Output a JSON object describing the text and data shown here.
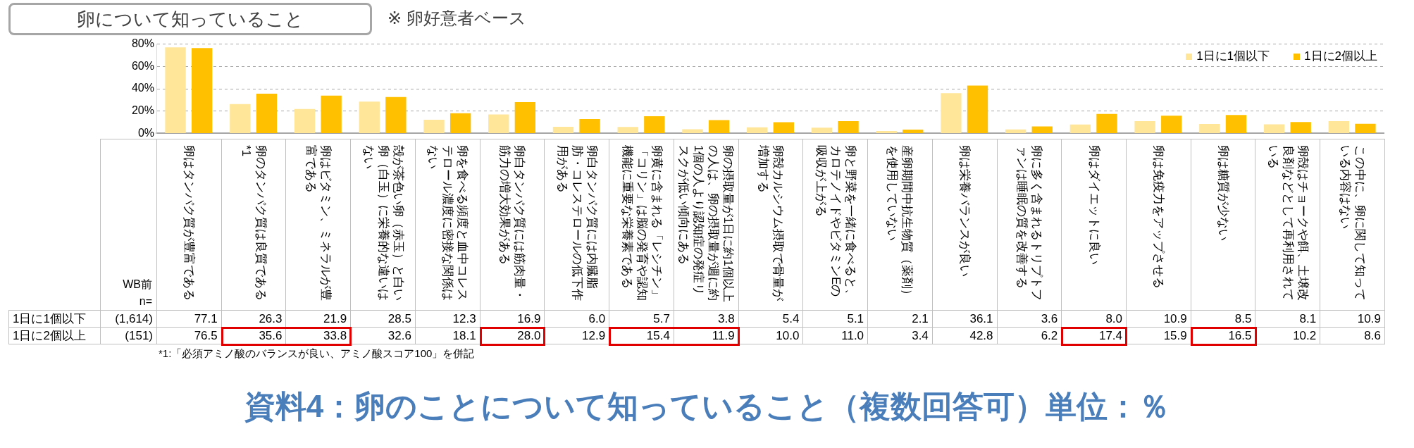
{
  "chart_data": {
    "type": "bar",
    "title": "卵について知っていること",
    "subtitle": "※ 卵好意者ベース",
    "categories": [
      "卵はタンパク質が豊富である",
      "卵のタンパク質は良質である*1",
      "卵はビタミン、ミネラルが豊富である",
      "殻が茶色い卵（赤玉）と白い卵（白玉）に栄養的な違いはない",
      "卵を食べる頻度と血中コレステロール濃度に密接な関係はない",
      "卵白タンパク質には筋肉量・筋力の増大効果がある",
      "卵白タンパク質には内臓脂肪・コレステロールの低下作用がある",
      "卵黄に含まれる「レシチン」「コリン」は脳の発育や認知機能に重要な栄養素である",
      "卵の摂取量が1日に約1個以上の人は、卵の摂取量が週に約1個の人より認知症の発症リスクが低い傾向にある",
      "卵殻カルシウム摂取で骨量が増加する",
      "卵と野菜を一緒に食べると、カロテノイドやビタミンEの吸収が上がる",
      "産卵期間中抗生物質（薬剤）を使用していない",
      "卵は栄養バランスが良い",
      "卵に多く含まれるトリプトファンは睡眠の質を改善する",
      "卵はダイエットに良い",
      "卵は免疫力をアップさせる",
      "卵は糖質が少ない",
      "卵殻はチョークや餌、土壌改良剤などとして再利用されている",
      "この中に、卵に関して知っている内容はない"
    ],
    "series": [
      {
        "name": "1日に1個以下",
        "color": "#ffe699",
        "values": [
          77.1,
          26.3,
          21.9,
          28.5,
          12.3,
          16.9,
          6.0,
          5.7,
          3.8,
          5.4,
          5.1,
          2.1,
          36.1,
          3.6,
          8.0,
          10.9,
          8.5,
          8.1,
          10.9
        ],
        "value_labels": [
          "77.1",
          "26.3",
          "21.9",
          "28.5",
          "12.3",
          "16.9",
          "6.0",
          "5.7",
          "3.8",
          "5.4",
          "5.1",
          "2.1",
          "36.1",
          "3.6",
          "8.0",
          "10.9",
          "8.5",
          "8.1",
          "10.9"
        ]
      },
      {
        "name": "1日に2個以上",
        "color": "#ffc000",
        "values": [
          76.5,
          35.6,
          33.8,
          32.6,
          18.1,
          28.0,
          12.9,
          15.4,
          11.9,
          10.0,
          11.0,
          3.4,
          42.8,
          6.2,
          17.4,
          15.9,
          16.5,
          10.2,
          8.6
        ],
        "value_labels": [
          "76.5",
          "35.6",
          "33.8",
          "32.6",
          "18.1",
          "28.0",
          "12.9",
          "15.4",
          "11.9",
          "10.0",
          "11.0",
          "3.4",
          "42.8",
          "6.2",
          "17.4",
          "15.9",
          "16.5",
          "10.2",
          "8.6"
        ]
      }
    ],
    "ylim": [
      0,
      80
    ],
    "yticks": [
      {
        "value": 0,
        "label": "0%"
      },
      {
        "value": 20,
        "label": "20%"
      },
      {
        "value": 40,
        "label": "40%"
      },
      {
        "value": 60,
        "label": "60%"
      },
      {
        "value": 80,
        "label": "80%"
      }
    ],
    "grid": "y",
    "legend": "top right",
    "annotations": [
      "WB前",
      "n=",
      "(1,614)",
      "(151)",
      "*1:「必須アミノ酸のバランスが良い、アミノ酸スコア100」を併記",
      "資料4：卵のことについて知っていること（複数回答可）単位：％"
    ]
  }
}
